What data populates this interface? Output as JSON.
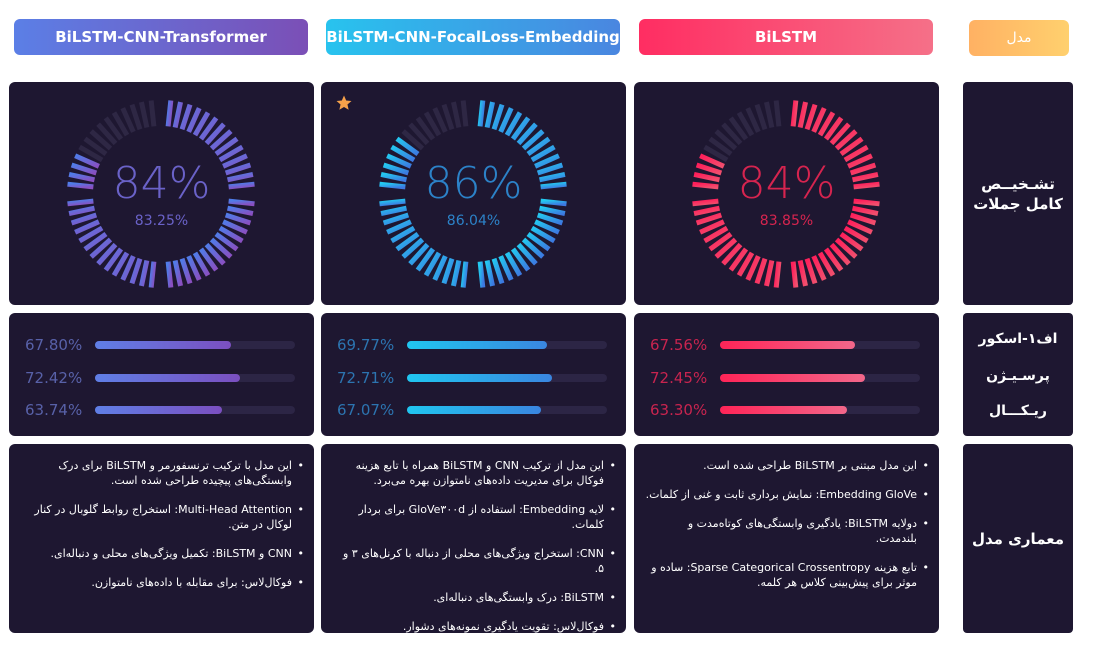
{
  "header": {
    "transformer": "BiLSTM-CNN-Transformer",
    "focal": "BiLSTM-CNN-FocalLoss-Embedding",
    "bilstm": "BiLSTM",
    "model_label": "مدل"
  },
  "row_labels": {
    "gauge_line1": "تشـخیــص",
    "gauge_line2": "کامل جملات",
    "f1": "اف۱-اسکور",
    "precision": "پرسـیـژن",
    "recall": "ریـکـــال",
    "architecture": "معماری مدل"
  },
  "gauges": [
    {
      "name": "BiLSTM-CNN-Transformer",
      "percent_label": "84%",
      "value_label": "83.25%",
      "value": 83.25,
      "color_start": "#4f7ce8",
      "color_end": "#8a4fc0",
      "text_color": "#6a62c8"
    },
    {
      "name": "BiLSTM-CNN-FocalLoss-Embedding",
      "percent_label": "86%",
      "value_label": "86.04%",
      "value": 86.04,
      "color_start": "#23c8f0",
      "color_end": "#3d78e0",
      "text_color": "#2c82c8"
    },
    {
      "name": "BiLSTM",
      "percent_label": "84%",
      "value_label": "83.85%",
      "value": 83.85,
      "color_start": "#ff1e5a",
      "color_end": "#f0506e",
      "text_color": "#d6244f"
    }
  ],
  "metrics": [
    {
      "f1": "67.80%",
      "precision": "72.42%",
      "recall": "63.74%",
      "f1_v": 67.8,
      "precision_v": 72.42,
      "recall_v": 63.74,
      "text_color": "#5861a8",
      "fill": "linear-gradient(90deg,#5f7fe6,#7b4fc0)"
    },
    {
      "f1": "69.77%",
      "precision": "72.71%",
      "recall": "67.07%",
      "f1_v": 69.77,
      "precision_v": 72.71,
      "recall_v": 67.07,
      "text_color": "#2c74b0",
      "fill": "linear-gradient(90deg,#20c6f0,#3a86e0)"
    },
    {
      "f1": "67.56%",
      "precision": "72.45%",
      "recall": "63.30%",
      "f1_v": 67.56,
      "precision_v": 72.45,
      "recall_v": 63.3,
      "text_color": "#c8244f",
      "fill": "linear-gradient(90deg,#ff2457,#f2678a)"
    }
  ],
  "descriptions": {
    "transformer": [
      "این مدل با ترکیب ترنسفورمر و BiLSTM برای درک وابستگی‌های پیچیده طراحی شده است.",
      "Multi-Head Attention: استخراج روابط گلوبال در کنار لوکال در متن.",
      "CNN و BiLSTM: تکمیل ویژگی‌های محلی و دنباله‌ای.",
      "فوکال‌لاس: برای مقابله با داده‌های نامتوازن."
    ],
    "focal": [
      "این مدل از ترکیب CNN و BiLSTM همراه با تابع هزینه فوکال برای مدیریت داده‌های نامتوازن بهره می‌برد.",
      "لایه Embedding: استفاده از GloVe۳۰۰d برای بردار کلمات.",
      "CNN: استخراج ویژگی‌های محلی از دنباله با کرنل‌های ۳ و ۵.",
      "BiLSTM: درک وابستگی‌های دنباله‌ای.",
      "فوکال‌لاس: تقویت یادگیری نمونه‌های دشوار."
    ],
    "bilstm": [
      "این مدل مبتنی بر BiLSTM طراحی شده است.",
      "Embedding GloVe: نمایش برداری ثابت و غنی از کلمات.",
      "دولایه BiLSTM: یادگیری وابستگی‌های کوتاه‌مدت و بلندمدت.",
      "تابع هزینه Sparse Categorical Crossentropy: ساده و موثر برای پیش‌بینی کلاس هر کلمه."
    ]
  },
  "icons": {
    "star": "star-icon"
  }
}
